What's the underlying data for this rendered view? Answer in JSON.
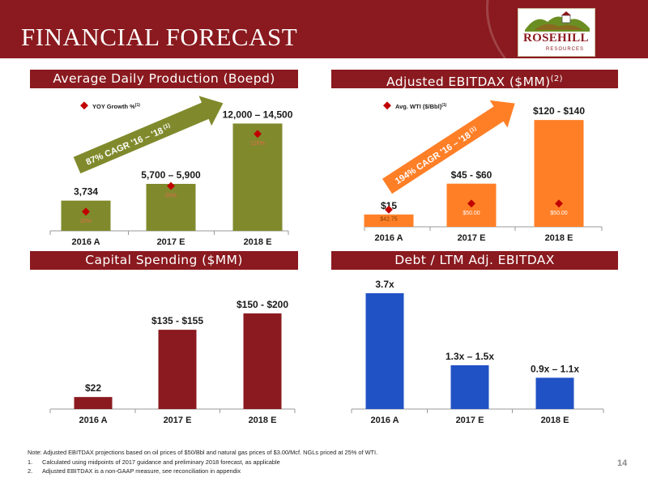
{
  "header": {
    "title": "FINANCIAL FORECAST",
    "logo_text": "ROSEHILL",
    "logo_sub": "RESOURCES"
  },
  "colors": {
    "brand": "#8a1a1f",
    "olive": "#808a2c",
    "orange": "#ff7f27",
    "blue": "#2152c5",
    "marker": "#c00000"
  },
  "chart_data": [
    {
      "type": "bar",
      "title": "Average Daily Production (Boepd)",
      "categories": [
        "2016 A",
        "2017 E",
        "2018 E"
      ],
      "values": [
        3734,
        5800,
        13250
      ],
      "value_labels": [
        "3,734",
        "5,700 – 5,900",
        "12,000 – 14,500"
      ],
      "marker_series": {
        "name": "YOY Growth %",
        "name_sup": "(1)",
        "values": [
          20,
          55,
          126
        ],
        "labels": [
          "20%",
          "55%",
          "126%"
        ]
      },
      "annotation": {
        "text": "87% CAGR '16 – '18",
        "sup": "(1)"
      },
      "color": "#808a2c"
    },
    {
      "type": "bar",
      "title": "Adjusted EBITDAX ($MM)",
      "title_sup": "(2)",
      "categories": [
        "2016 A",
        "2017 E",
        "2018 E"
      ],
      "values": [
        15,
        52.5,
        130
      ],
      "value_labels": [
        "$15",
        "$45 - $60",
        "$120 - $140"
      ],
      "marker_series": {
        "name": "Avg. WTI ($/Bbl)",
        "name_sup": "(1)",
        "values": [
          42.75,
          50,
          50
        ],
        "labels": [
          "$42.75",
          "$50.00",
          "$50.00"
        ]
      },
      "annotation": {
        "text": "194% CAGR '16 – '18",
        "sup": "(1)"
      },
      "color": "#ff7f27"
    },
    {
      "type": "bar",
      "title": "Capital Spending ($MM)",
      "categories": [
        "2016 A",
        "2017 E",
        "2018 E"
      ],
      "values": [
        22,
        145,
        175
      ],
      "value_labels": [
        "$22",
        "$135 - $155",
        "$150 - $200"
      ],
      "color": "#8a1a1f"
    },
    {
      "type": "bar",
      "title": "Debt / LTM Adj. EBITDAX",
      "categories": [
        "2016 A",
        "2017 E",
        "2018 E"
      ],
      "values": [
        3.7,
        1.4,
        1.0
      ],
      "value_labels": [
        "3.7x",
        "1.3x – 1.5x",
        "0.9x – 1.1x"
      ],
      "color": "#2152c5"
    }
  ],
  "footnotes": {
    "note": "Note: Adjusted EBITDAX projections based on oil prices of $50/Bbl and natural gas prices of $3.00/Mcf. NGLs priced at 25% of WTI.",
    "items": [
      {
        "num": "1.",
        "text": "Calculated using midpoints of 2017 guidance and preliminary 2018 forecast, as applicable"
      },
      {
        "num": "2.",
        "text": "Adjusted EBITDAX is a non-GAAP measure, see reconciliation in appendix"
      }
    ]
  },
  "page_number": "14"
}
